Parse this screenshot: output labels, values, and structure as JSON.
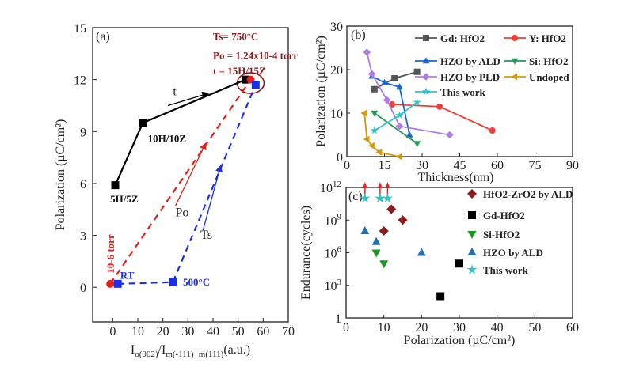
{
  "chart_data": [
    {
      "type": "line",
      "panel_label": "(a)",
      "xlabel": "I_o(002)/I_m(-111)+m(111)(a.u.)",
      "xlabel_parts": {
        "a": "I",
        "b": "o(002)",
        "c": "/I",
        "d": "m(-111)+m(111)",
        "e": "(a.u.)"
      },
      "ylabel": "Polarization (µC/cm²)",
      "xlim": [
        -8,
        70
      ],
      "ylim": [
        -2,
        15
      ],
      "xticks": [
        "0",
        "10",
        "20",
        "30",
        "40",
        "50",
        "60",
        "70"
      ],
      "yticks": [
        "0",
        "3",
        "6",
        "9",
        "12",
        "15"
      ],
      "series": [
        {
          "key": "t",
          "color": "#000000",
          "dash": false,
          "marker": "square",
          "points": [
            [
              1,
              5.9
            ],
            [
              12,
              9.5
            ],
            [
              53,
              12
            ]
          ]
        },
        {
          "key": "po",
          "color": "#e8201c",
          "dash": true,
          "marker": "circle",
          "points": [
            [
              -1,
              0.2
            ],
            [
              55,
              12
            ]
          ]
        },
        {
          "key": "ts",
          "color": "#1a2fe8",
          "dash": true,
          "marker": "square",
          "points": [
            [
              2,
              0.2
            ],
            [
              24,
              0.3
            ],
            [
              57,
              11.7
            ]
          ]
        }
      ],
      "annotations": {
        "cond1": "Ts= 750°C",
        "cond2": "Po = 1.24x10-4 torr",
        "cond3": "t = 15H/15Z",
        "p5": "5H/5Z",
        "p10": "10H/10Z",
        "t_arrow": "t",
        "po_arrow": "Po",
        "ts_arrow": "Ts",
        "torr": "10-6 torr",
        "rt": "RT",
        "c500": "500°C"
      },
      "highlight_color": "#8b1a1a"
    },
    {
      "type": "line",
      "panel_label": "(b)",
      "xlabel": "Thickness(nm)",
      "ylabel": "Polarization (µC/cm²)",
      "xlim": [
        0,
        90
      ],
      "ylim": [
        0,
        30
      ],
      "xticks": [
        "0",
        "15",
        "30",
        "45",
        "60",
        "75",
        "90"
      ],
      "yticks": [
        "0",
        "10",
        "20",
        "30"
      ],
      "series": [
        {
          "name": "Gd: HfO2",
          "color": "#555555",
          "marker": "square",
          "points": [
            [
              11,
              15.5
            ],
            [
              19,
              18
            ],
            [
              28,
              19.5
            ]
          ]
        },
        {
          "name": "Y: HfO2",
          "color": "#ef4136",
          "marker": "circle",
          "points": [
            [
              18,
              12
            ],
            [
              37,
              11.5
            ],
            [
              58,
              6
            ]
          ]
        },
        {
          "name": "HZO by ALD",
          "color": "#1565d8",
          "marker": "triangle-up",
          "points": [
            [
              10,
              18.5
            ],
            [
              15,
              17
            ],
            [
              21,
              16
            ],
            [
              25,
              5
            ]
          ]
        },
        {
          "name": "Si: HfO2",
          "color": "#239b56",
          "marker": "triangle-down",
          "points": [
            [
              11,
              10
            ],
            [
              28,
              3
            ]
          ]
        },
        {
          "name": "HZO by PLD",
          "color": "#b27be3",
          "marker": "diamond",
          "points": [
            [
              8,
              24
            ],
            [
              10,
              19
            ],
            [
              16,
              13
            ],
            [
              21,
              7
            ],
            [
              41,
              5
            ]
          ]
        },
        {
          "name": "Undoped",
          "color": "#d49a0a",
          "marker": "triangle-left",
          "points": [
            [
              7,
              10
            ],
            [
              8,
              4
            ],
            [
              10,
              2.5
            ],
            [
              13,
              1
            ],
            [
              21,
              0
            ]
          ]
        },
        {
          "name": "This work",
          "color": "#2ec6c6",
          "marker": "star",
          "points": [
            [
              11,
              6
            ],
            [
              21,
              9.5
            ],
            [
              28,
              12.5
            ]
          ]
        }
      ]
    },
    {
      "type": "scatter",
      "panel_label": "(c)",
      "xlabel": "Polarization (µC/cm²)",
      "ylabel": "Endurance(cycles)",
      "xlim": [
        0,
        60
      ],
      "ylim": [
        1,
        1000000000000.0
      ],
      "yscale": "log",
      "xticks": [
        "0",
        "10",
        "20",
        "30",
        "40",
        "50",
        "60"
      ],
      "yticks": [
        {
          "base": "1",
          "exp": ""
        },
        {
          "base": "10",
          "exp": "3"
        },
        {
          "base": "10",
          "exp": "6"
        },
        {
          "base": "10",
          "exp": "9"
        },
        {
          "base": "10",
          "exp": "12"
        }
      ],
      "series": [
        {
          "name": "HfO2-ZrO2  by ALD",
          "color": "#8b1a1a",
          "marker": "diamond",
          "points": [
            [
              12,
              10000000000.0
            ],
            [
              15,
              1000000000.0
            ],
            [
              10,
              100000000.0
            ]
          ]
        },
        {
          "name": "Gd-HfO2",
          "color": "#000000",
          "marker": "square",
          "points": [
            [
              30,
              100000.0
            ],
            [
              25,
              100.0
            ]
          ]
        },
        {
          "name": "Si-HfO2",
          "color": "#1a9a1a",
          "marker": "triangle-down",
          "points": [
            [
              8,
              1000000.0
            ],
            [
              10,
              100000.0
            ]
          ]
        },
        {
          "name": "HZO by ALD",
          "color": "#1f6fb4",
          "marker": "triangle-up",
          "points": [
            [
              5,
              100000000.0
            ],
            [
              8,
              10000000.0
            ],
            [
              20,
              1000000.0
            ]
          ]
        },
        {
          "name": "This work",
          "color": "#2ec6c6",
          "marker": "star",
          "points": [
            [
              5,
              100000000000.0
            ],
            [
              9,
              100000000000.0
            ],
            [
              11,
              100000000000.0
            ]
          ],
          "arrow_color": "#e8201c"
        }
      ]
    }
  ]
}
